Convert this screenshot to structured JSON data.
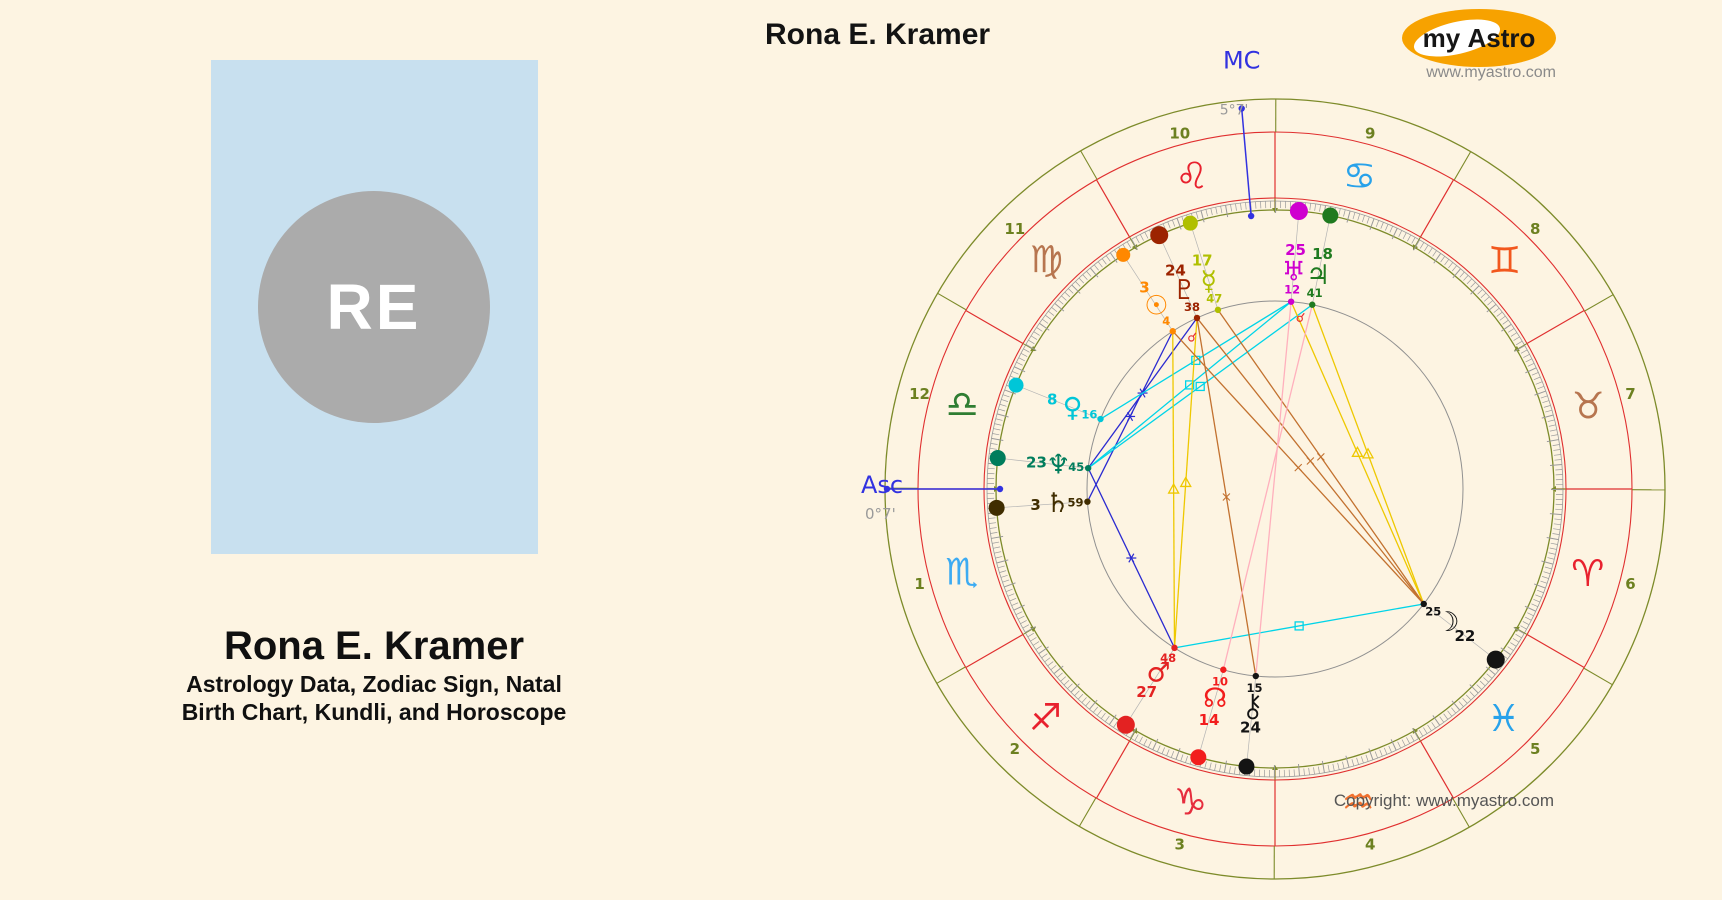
{
  "page": {
    "copyright": "Copyright: www.myastro.com",
    "background": "#fdf4e2"
  },
  "profile_card": {
    "initials": "RE",
    "name": "Rona E. Kramer",
    "subtitle_lines": [
      "Astrology Data, Zodiac Sign, Natal",
      "Birth Chart, Kundli, and Horoscope"
    ],
    "card_color": "#c8e0ef",
    "avatar_color": "#ababab"
  },
  "header": {
    "title": "Rona E. Kramer"
  },
  "logo": {
    "word_my": "my",
    "word_astro": "Astro",
    "website": "www.myastro.com",
    "oval_color": "#f7a200"
  },
  "chart": {
    "axes": {
      "asc": {
        "label": "Asc",
        "degree_text": "0°7'",
        "sign": "Scorpio",
        "deg": 0,
        "min": 7
      },
      "mc": {
        "label": "MC",
        "degree_text": "5°7'",
        "sign": "Leo",
        "deg": 5,
        "min": 7
      }
    },
    "house_numbers": [
      "1",
      "2",
      "3",
      "4",
      "5",
      "6",
      "7",
      "8",
      "9",
      "10",
      "11",
      "12"
    ],
    "signs": [
      {
        "name": "Aries",
        "glyph": "♈",
        "color": "#e8212e"
      },
      {
        "name": "Taurus",
        "glyph": "♉",
        "color": "#b7754f"
      },
      {
        "name": "Gemini",
        "glyph": "♊",
        "color": "#f2571d"
      },
      {
        "name": "Cancer",
        "glyph": "♋",
        "color": "#28a2ea"
      },
      {
        "name": "Leo",
        "glyph": "♌",
        "color": "#e8212e"
      },
      {
        "name": "Virgo",
        "glyph": "♍",
        "color": "#b7754f"
      },
      {
        "name": "Libra",
        "glyph": "♎",
        "color": "#2f7d32"
      },
      {
        "name": "Scorpio",
        "glyph": "♏",
        "color": "#3dabf2"
      },
      {
        "name": "Sagittarius",
        "glyph": "♐",
        "color": "#e8212e"
      },
      {
        "name": "Capricorn",
        "glyph": "♑",
        "color": "#e62e3e"
      },
      {
        "name": "Aquarius",
        "glyph": "♒",
        "color": "#f0702e"
      },
      {
        "name": "Pisces",
        "glyph": "♓",
        "color": "#28a2ea"
      }
    ],
    "planets": [
      {
        "name": "Sun",
        "glyph": "☉",
        "color": "#ff8800",
        "sign": "Virgo",
        "deg": "3",
        "min": "4",
        "dot": 7
      },
      {
        "name": "Moon",
        "glyph": "☽",
        "color": "#141414",
        "sign": "Pisces",
        "deg": "22",
        "min": "25",
        "dot": 9
      },
      {
        "name": "Mercury",
        "glyph": "☿",
        "color": "#b0bf00",
        "sign": "Leo",
        "deg": "17",
        "min": "47",
        "dot": 7.5
      },
      {
        "name": "Venus",
        "glyph": "♀",
        "color": "#00c6d8",
        "sign": "Libra",
        "deg": "8",
        "min": "16",
        "dot": 7.5
      },
      {
        "name": "Mars",
        "glyph": "♂",
        "color": "#e32222",
        "sign": "Sagittarius",
        "deg": "27",
        "min": "48",
        "dot": 9
      },
      {
        "name": "Jupiter",
        "glyph": "♃",
        "color": "#1f7a1f",
        "sign": "Cancer",
        "deg": "18",
        "min": "41",
        "dot": 8
      },
      {
        "name": "Saturn",
        "glyph": "♄",
        "color": "#402d00",
        "sign": "Scorpio",
        "deg": "3",
        "min": "59",
        "dot": 8
      },
      {
        "name": "Uranus",
        "glyph": "♅",
        "color": "#cf00cf",
        "sign": "Cancer",
        "deg": "25",
        "min": "12",
        "dot": 9
      },
      {
        "name": "Neptune",
        "glyph": "♆",
        "color": "#007d5c",
        "sign": "Libra",
        "deg": "23",
        "min": "45",
        "dot": 8
      },
      {
        "name": "Pluto",
        "glyph": "♇",
        "color": "#9c2300",
        "sign": "Leo",
        "deg": "24",
        "min": "38",
        "dot": 9
      },
      {
        "name": "Node",
        "glyph": "☊",
        "color": "#f21d1d",
        "sign": "Capricorn",
        "deg": "14",
        "min": "10",
        "dot": 8
      },
      {
        "name": "Chiron",
        "glyph": "⚷",
        "color": "#141414",
        "sign": "Capricorn",
        "deg": "24",
        "min": "15",
        "dot": 8
      }
    ],
    "aspects": [
      {
        "from": "Neptune",
        "to": "Pluto",
        "type": "sextile"
      },
      {
        "from": "Saturn",
        "to": "Sun",
        "type": "sextile"
      },
      {
        "from": "Neptune",
        "to": "Mars",
        "type": "sextile"
      },
      {
        "from": "Neptune",
        "to": "Uranus",
        "type": "square"
      },
      {
        "from": "Neptune",
        "to": "Jupiter",
        "type": "square"
      },
      {
        "from": "Venus",
        "to": "Uranus",
        "type": "square"
      },
      {
        "from": "Mars",
        "to": "Moon",
        "type": "square"
      },
      {
        "from": "Pluto",
        "to": "Mars",
        "type": "trine"
      },
      {
        "from": "Sun",
        "to": "Mars",
        "type": "trine"
      },
      {
        "from": "Uranus",
        "to": "Moon",
        "type": "trine"
      },
      {
        "from": "Jupiter",
        "to": "Moon",
        "type": "trine"
      },
      {
        "from": "Pluto",
        "to": "Moon",
        "type": "quincunx"
      },
      {
        "from": "Mercury",
        "to": "Moon",
        "type": "quincunx"
      },
      {
        "from": "Sun",
        "to": "Moon",
        "type": "quincunx"
      },
      {
        "from": "Pluto",
        "to": "Chiron",
        "type": "quincunx"
      },
      {
        "from": "Uranus",
        "to": "Chiron",
        "type": "opposition"
      },
      {
        "from": "Jupiter",
        "to": "Node",
        "type": "opposition"
      },
      {
        "from": "Sun",
        "to": "Pluto",
        "type": "conjunction"
      },
      {
        "from": "Uranus",
        "to": "Jupiter",
        "type": "conjunction"
      }
    ],
    "aspect_styles": {
      "sextile": {
        "color": "#2a2ad0"
      },
      "square": {
        "color": "#00d4e8"
      },
      "trine": {
        "color": "#eec800"
      },
      "quincunx": {
        "color": "#c2712f"
      },
      "opposition": {
        "color": "#ffb0bd"
      },
      "conjunction": {
        "color": "#e83030"
      }
    },
    "ring_colors": {
      "olive": "#7d8b2a",
      "red": "#e02f2f",
      "ruler": "#9a9a9a",
      "aspect_circle": "#909090",
      "house_number": "#6c8020",
      "axis_blue": "#3232e0",
      "degree_gray": "#9a9a9a",
      "connector": "#b4b4b4"
    }
  }
}
